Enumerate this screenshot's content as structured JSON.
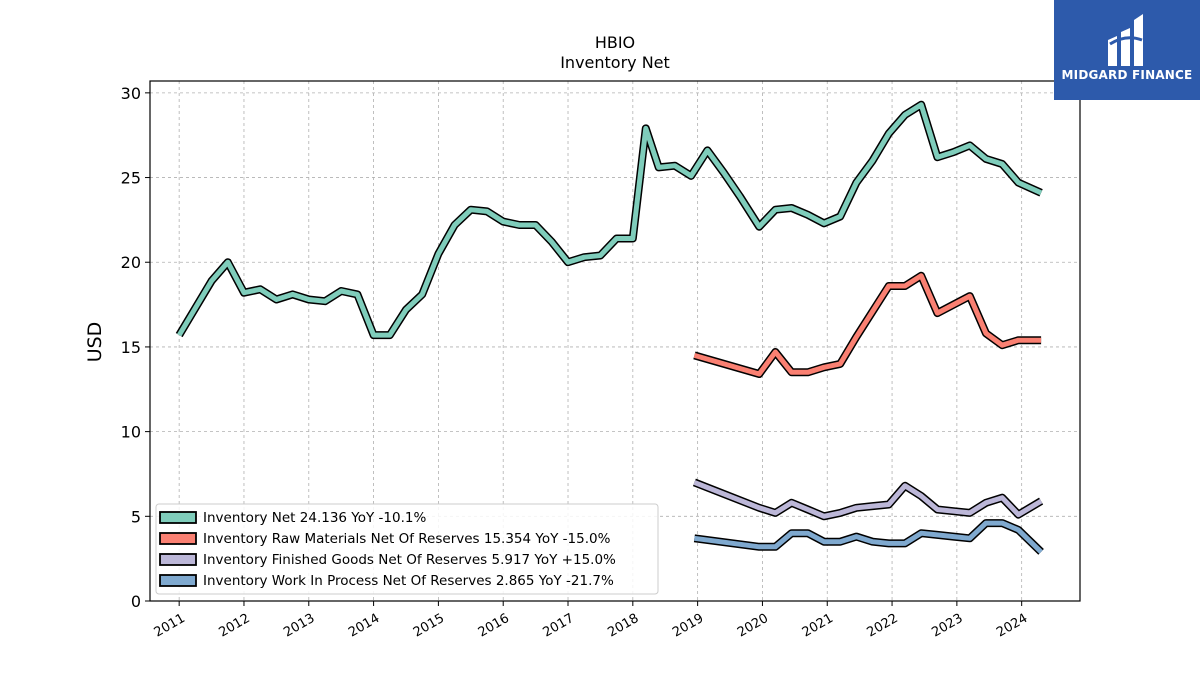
{
  "chart_data": {
    "type": "line",
    "title": "HBIO",
    "subtitle": "Inventory Net",
    "xlabel": "",
    "ylabel": "USD",
    "xlim": [
      2010.55,
      2024.9
    ],
    "ylim": [
      0,
      30.7
    ],
    "yticks": [
      0,
      5,
      10,
      15,
      20,
      25,
      30
    ],
    "xticks": [
      "2011",
      "2012",
      "2013",
      "2014",
      "2015",
      "2016",
      "2017",
      "2018",
      "2019",
      "2020",
      "2021",
      "2022",
      "2023",
      "2024"
    ],
    "grid": true,
    "legend_position": "lower-left",
    "series": [
      {
        "name": "Inventory Net",
        "legend": "Inventory Net  24.136 YoY -10.1%",
        "color": "#7fcdbb",
        "points": [
          [
            2011.0,
            15.7
          ],
          [
            2011.25,
            17.3
          ],
          [
            2011.5,
            18.9
          ],
          [
            2011.75,
            20.0
          ],
          [
            2012.0,
            18.2
          ],
          [
            2012.25,
            18.4
          ],
          [
            2012.5,
            17.8
          ],
          [
            2012.75,
            18.1
          ],
          [
            2013.0,
            17.8
          ],
          [
            2013.25,
            17.7
          ],
          [
            2013.5,
            18.3
          ],
          [
            2013.75,
            18.1
          ],
          [
            2014.0,
            15.7
          ],
          [
            2014.25,
            15.7
          ],
          [
            2014.5,
            17.2
          ],
          [
            2014.75,
            18.1
          ],
          [
            2015.0,
            20.5
          ],
          [
            2015.25,
            22.2
          ],
          [
            2015.5,
            23.1
          ],
          [
            2015.75,
            23.0
          ],
          [
            2016.0,
            22.4
          ],
          [
            2016.25,
            22.2
          ],
          [
            2016.5,
            22.2
          ],
          [
            2016.75,
            21.2
          ],
          [
            2017.0,
            20.0
          ],
          [
            2017.25,
            20.3
          ],
          [
            2017.5,
            20.4
          ],
          [
            2017.75,
            21.4
          ],
          [
            2018.0,
            21.4
          ],
          [
            2018.2,
            27.9
          ],
          [
            2018.4,
            25.6
          ],
          [
            2018.65,
            25.7
          ],
          [
            2018.9,
            25.1
          ],
          [
            2019.15,
            26.6
          ],
          [
            2019.4,
            25.3
          ],
          [
            2019.65,
            23.9
          ],
          [
            2019.95,
            22.1
          ],
          [
            2020.2,
            23.1
          ],
          [
            2020.45,
            23.2
          ],
          [
            2020.7,
            22.8
          ],
          [
            2020.95,
            22.3
          ],
          [
            2021.2,
            22.7
          ],
          [
            2021.45,
            24.7
          ],
          [
            2021.7,
            26.0
          ],
          [
            2021.95,
            27.6
          ],
          [
            2022.2,
            28.7
          ],
          [
            2022.45,
            29.3
          ],
          [
            2022.7,
            26.2
          ],
          [
            2022.95,
            26.5
          ],
          [
            2023.2,
            26.9
          ],
          [
            2023.45,
            26.1
          ],
          [
            2023.7,
            25.8
          ],
          [
            2023.95,
            24.7
          ],
          [
            2024.3,
            24.1
          ]
        ]
      },
      {
        "name": "Inventory Raw Materials Net Of Reserves",
        "legend": "Inventory Raw Materials Net Of Reserves  15.354 YoY -15.0%",
        "color": "#fa8072",
        "points": [
          [
            2018.95,
            14.5
          ],
          [
            2019.95,
            13.4
          ],
          [
            2020.2,
            14.7
          ],
          [
            2020.45,
            13.5
          ],
          [
            2020.7,
            13.5
          ],
          [
            2020.95,
            13.8
          ],
          [
            2021.2,
            14.0
          ],
          [
            2021.45,
            15.6
          ],
          [
            2021.95,
            18.6
          ],
          [
            2022.2,
            18.6
          ],
          [
            2022.45,
            19.2
          ],
          [
            2022.7,
            17.0
          ],
          [
            2022.95,
            17.5
          ],
          [
            2023.2,
            18.0
          ],
          [
            2023.45,
            15.8
          ],
          [
            2023.7,
            15.1
          ],
          [
            2023.95,
            15.4
          ],
          [
            2024.3,
            15.4
          ]
        ]
      },
      {
        "name": "Inventory Finished Goods Net Of Reserves",
        "legend": "Inventory Finished Goods Net Of Reserves  5.917 YoY +15.0%",
        "color": "#bcb7d8",
        "points": [
          [
            2018.95,
            7.0
          ],
          [
            2019.95,
            5.5
          ],
          [
            2020.2,
            5.2
          ],
          [
            2020.45,
            5.8
          ],
          [
            2020.7,
            5.4
          ],
          [
            2020.95,
            5.0
          ],
          [
            2021.2,
            5.2
          ],
          [
            2021.45,
            5.5
          ],
          [
            2021.7,
            5.6
          ],
          [
            2021.95,
            5.7
          ],
          [
            2022.2,
            6.8
          ],
          [
            2022.45,
            6.2
          ],
          [
            2022.7,
            5.4
          ],
          [
            2022.95,
            5.3
          ],
          [
            2023.2,
            5.2
          ],
          [
            2023.45,
            5.8
          ],
          [
            2023.7,
            6.1
          ],
          [
            2023.95,
            5.1
          ],
          [
            2024.3,
            5.9
          ]
        ]
      },
      {
        "name": "Inventory Work In Process Net Of Reserves",
        "legend": "Inventory Work In Process Net Of Reserves  2.865 YoY -21.7%",
        "color": "#7fa9cf",
        "points": [
          [
            2018.95,
            3.7
          ],
          [
            2019.95,
            3.2
          ],
          [
            2020.2,
            3.2
          ],
          [
            2020.45,
            4.0
          ],
          [
            2020.7,
            4.0
          ],
          [
            2020.95,
            3.5
          ],
          [
            2021.2,
            3.5
          ],
          [
            2021.45,
            3.8
          ],
          [
            2021.7,
            3.5
          ],
          [
            2021.95,
            3.4
          ],
          [
            2022.2,
            3.4
          ],
          [
            2022.45,
            4.0
          ],
          [
            2022.7,
            3.9
          ],
          [
            2022.95,
            3.8
          ],
          [
            2023.2,
            3.7
          ],
          [
            2023.45,
            4.6
          ],
          [
            2023.7,
            4.6
          ],
          [
            2023.95,
            4.2
          ],
          [
            2024.3,
            2.9
          ]
        ]
      }
    ]
  },
  "logo": {
    "name": "MIDGARD FINANCE",
    "background": "#2d5aab"
  }
}
